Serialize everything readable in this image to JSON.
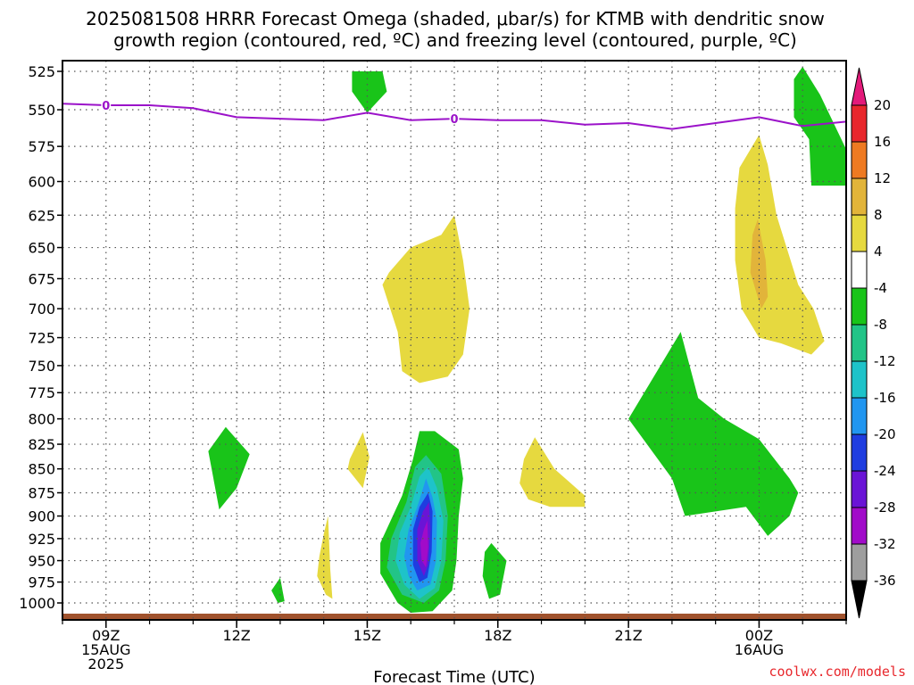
{
  "chart_data": {
    "type": "heatmap",
    "title_line1": "2025081508 HRRR Forecast Omega (shaded, μbar/s) for KTMB with dendritic snow",
    "title_line2": "growth region (contoured, red, ºC) and freezing level (contoured, purple, ºC)",
    "xlabel": "Forecast Time (UTC)",
    "credit": "coolwx.com/models",
    "y_scale": "pressure (hPa), inverted",
    "ylim": [
      1000,
      525
    ],
    "y_ticks": [
      525,
      550,
      575,
      600,
      625,
      650,
      675,
      700,
      725,
      750,
      775,
      800,
      825,
      850,
      875,
      900,
      925,
      950,
      975,
      1000
    ],
    "x_ticks": [
      {
        "t": 9,
        "line1": "09Z",
        "line2": "15AUG",
        "line3": "2025"
      },
      {
        "t": 12,
        "line1": "12Z"
      },
      {
        "t": 15,
        "line1": "15Z"
      },
      {
        "t": 18,
        "line1": "18Z"
      },
      {
        "t": 21,
        "line1": "21Z"
      },
      {
        "t": 24,
        "line1": "00Z",
        "line2": "16AUG"
      }
    ],
    "xlim_hours": [
      8,
      26
    ],
    "grid": true,
    "colorbar": {
      "labels": [
        "20",
        "16",
        "12",
        "8",
        "4",
        "-4",
        "-8",
        "-12",
        "-16",
        "-20",
        "-24",
        "-28",
        "-32",
        "-36"
      ],
      "colors": [
        "#e31a7a",
        "#e8272c",
        "#ee7a22",
        "#e2b43a",
        "#e6d93f",
        "#ffffff",
        "#19c419",
        "#22c487",
        "#1ec3c9",
        "#2196f0",
        "#1f3de0",
        "#6a14d6",
        "#a10bc9",
        "#9e9e9e",
        "#000000"
      ]
    },
    "freezing_level": {
      "label": "0",
      "color": "#9b12c9",
      "points": [
        {
          "t": 8.0,
          "p": 546
        },
        {
          "t": 9.0,
          "p": 547
        },
        {
          "t": 10.0,
          "p": 547
        },
        {
          "t": 11.0,
          "p": 549
        },
        {
          "t": 12.0,
          "p": 555
        },
        {
          "t": 13.0,
          "p": 556
        },
        {
          "t": 14.0,
          "p": 557
        },
        {
          "t": 15.0,
          "p": 552
        },
        {
          "t": 16.0,
          "p": 557
        },
        {
          "t": 17.0,
          "p": 556
        },
        {
          "t": 18.0,
          "p": 557
        },
        {
          "t": 19.0,
          "p": 557
        },
        {
          "t": 20.0,
          "p": 560
        },
        {
          "t": 21.0,
          "p": 559
        },
        {
          "t": 22.0,
          "p": 563
        },
        {
          "t": 23.0,
          "p": 559
        },
        {
          "t": 24.0,
          "p": 555
        },
        {
          "t": 25.0,
          "p": 561
        },
        {
          "t": 26.0,
          "p": 558
        }
      ]
    },
    "omega_regions": [
      {
        "level": "-8 to -4",
        "color": "#19c419",
        "points": [
          [
            14.65,
            525
          ],
          [
            15.35,
            525
          ],
          [
            15.45,
            538
          ],
          [
            15.0,
            552
          ],
          [
            14.65,
            538
          ]
        ]
      },
      {
        "level": "-8 to -4",
        "color": "#19c419",
        "points": [
          [
            24.8,
            530
          ],
          [
            25.0,
            522
          ],
          [
            25.4,
            540
          ],
          [
            26.0,
            577
          ],
          [
            26.0,
            603
          ],
          [
            25.2,
            603
          ],
          [
            25.15,
            570
          ],
          [
            24.8,
            555
          ]
        ]
      },
      {
        "level": "4 to 8",
        "color": "#e6d93f",
        "points": [
          [
            24.0,
            567
          ],
          [
            24.2,
            588
          ],
          [
            24.4,
            625
          ],
          [
            24.9,
            680
          ],
          [
            25.25,
            700
          ],
          [
            25.5,
            728
          ],
          [
            25.2,
            740
          ],
          [
            24.5,
            730
          ],
          [
            24.0,
            725
          ],
          [
            23.6,
            700
          ],
          [
            23.45,
            660
          ],
          [
            23.45,
            620
          ],
          [
            23.55,
            590
          ]
        ]
      },
      {
        "level": "8 to 12",
        "color": "#e2b43a",
        "points": [
          [
            23.97,
            628
          ],
          [
            24.15,
            660
          ],
          [
            24.2,
            690
          ],
          [
            24.05,
            700
          ],
          [
            23.8,
            670
          ],
          [
            23.85,
            640
          ]
        ]
      },
      {
        "level": "4 to 8",
        "color": "#e6d93f",
        "points": [
          [
            15.5,
            670
          ],
          [
            16.0,
            650
          ],
          [
            16.7,
            640
          ],
          [
            17.0,
            625
          ],
          [
            17.2,
            660
          ],
          [
            17.35,
            700
          ],
          [
            17.2,
            740
          ],
          [
            16.85,
            760
          ],
          [
            16.2,
            766
          ],
          [
            15.8,
            755
          ],
          [
            15.7,
            720
          ],
          [
            15.35,
            680
          ]
        ]
      },
      {
        "level": "-8 to -4",
        "color": "#19c419",
        "points": [
          [
            22.2,
            720
          ],
          [
            22.6,
            780
          ],
          [
            23.2,
            800
          ],
          [
            24.0,
            820
          ],
          [
            24.7,
            860
          ],
          [
            24.9,
            875
          ],
          [
            24.7,
            900
          ],
          [
            24.2,
            922
          ],
          [
            23.7,
            890
          ],
          [
            22.3,
            900
          ],
          [
            22.0,
            860
          ],
          [
            21.0,
            800
          ]
        ]
      },
      {
        "level": "-8 to -4",
        "color": "#19c419",
        "points": [
          [
            11.35,
            832
          ],
          [
            11.75,
            808
          ],
          [
            12.3,
            835
          ],
          [
            12.0,
            870
          ],
          [
            11.6,
            893
          ]
        ]
      },
      {
        "level": "4 to 8",
        "color": "#e6d93f",
        "points": [
          [
            14.6,
            840
          ],
          [
            14.9,
            813
          ],
          [
            15.05,
            838
          ],
          [
            14.9,
            870
          ],
          [
            14.55,
            850
          ]
        ]
      },
      {
        "level": "4 to 8",
        "color": "#e6d93f",
        "points": [
          [
            18.6,
            840
          ],
          [
            18.85,
            818
          ],
          [
            19.3,
            850
          ],
          [
            19.8,
            870
          ],
          [
            20.0,
            878
          ],
          [
            20.0,
            890
          ],
          [
            19.2,
            890
          ],
          [
            18.7,
            882
          ],
          [
            18.5,
            865
          ]
        ]
      },
      {
        "level": "4 to 8",
        "color": "#e6d93f",
        "points": [
          [
            13.9,
            945
          ],
          [
            14.0,
            920
          ],
          [
            14.1,
            900
          ],
          [
            14.15,
            960
          ],
          [
            14.2,
            995
          ],
          [
            14.05,
            990
          ],
          [
            13.85,
            968
          ]
        ]
      },
      {
        "level": "-8 to -4",
        "color": "#19c419",
        "points": [
          [
            12.8,
            985
          ],
          [
            13.0,
            970
          ],
          [
            13.1,
            998
          ],
          [
            12.95,
            1000
          ]
        ]
      },
      {
        "level": "-8 to -4",
        "color": "#19c419",
        "points": [
          [
            17.7,
            940
          ],
          [
            17.85,
            930
          ],
          [
            18.2,
            950
          ],
          [
            18.05,
            990
          ],
          [
            17.8,
            995
          ],
          [
            17.65,
            968
          ]
        ]
      },
      {
        "level": "-8 to -4",
        "color": "#19c419",
        "points": [
          [
            15.8,
            878
          ],
          [
            16.05,
            840
          ],
          [
            16.2,
            812
          ],
          [
            16.55,
            812
          ],
          [
            17.1,
            830
          ],
          [
            17.2,
            860
          ],
          [
            17.1,
            900
          ],
          [
            17.05,
            950
          ],
          [
            16.95,
            985
          ],
          [
            16.5,
            1010
          ],
          [
            16.0,
            1012
          ],
          [
            15.7,
            1000
          ],
          [
            15.3,
            965
          ],
          [
            15.3,
            930
          ]
        ]
      },
      {
        "level": "-12 to -8",
        "color": "#22c487",
        "points": [
          [
            15.9,
            885
          ],
          [
            16.1,
            848
          ],
          [
            16.35,
            836
          ],
          [
            16.7,
            855
          ],
          [
            16.85,
            900
          ],
          [
            16.8,
            950
          ],
          [
            16.65,
            985
          ],
          [
            16.3,
            1000
          ],
          [
            15.8,
            990
          ],
          [
            15.45,
            958
          ],
          [
            15.55,
            925
          ]
        ]
      },
      {
        "level": "-16 to -12",
        "color": "#1ec3c9",
        "points": [
          [
            16.0,
            890
          ],
          [
            16.2,
            858
          ],
          [
            16.4,
            848
          ],
          [
            16.6,
            870
          ],
          [
            16.75,
            905
          ],
          [
            16.7,
            950
          ],
          [
            16.55,
            982
          ],
          [
            16.2,
            995
          ],
          [
            15.85,
            978
          ],
          [
            15.65,
            950
          ],
          [
            15.75,
            918
          ]
        ]
      },
      {
        "level": "-20 to -16",
        "color": "#2196f0",
        "points": [
          [
            16.15,
            890
          ],
          [
            16.35,
            860
          ],
          [
            16.5,
            880
          ],
          [
            16.6,
            905
          ],
          [
            16.58,
            950
          ],
          [
            16.45,
            978
          ],
          [
            16.15,
            985
          ],
          [
            15.95,
            968
          ],
          [
            15.85,
            945
          ],
          [
            15.95,
            915
          ]
        ]
      },
      {
        "level": "-24 to -20",
        "color": "#1f3de0",
        "points": [
          [
            16.2,
            890
          ],
          [
            16.4,
            875
          ],
          [
            16.5,
            895
          ],
          [
            16.48,
            940
          ],
          [
            16.38,
            970
          ],
          [
            16.2,
            975
          ],
          [
            16.05,
            955
          ],
          [
            16.05,
            915
          ]
        ]
      },
      {
        "level": "-28 to -24",
        "color": "#6a14d6",
        "points": [
          [
            16.28,
            895
          ],
          [
            16.42,
            885
          ],
          [
            16.45,
            915
          ],
          [
            16.4,
            955
          ],
          [
            16.3,
            968
          ],
          [
            16.15,
            950
          ],
          [
            16.15,
            915
          ]
        ]
      },
      {
        "level": "-32 to -28",
        "color": "#a10bc9",
        "points": [
          [
            16.3,
            915
          ],
          [
            16.38,
            905
          ],
          [
            16.4,
            935
          ],
          [
            16.35,
            958
          ],
          [
            16.25,
            950
          ],
          [
            16.22,
            930
          ]
        ]
      }
    ],
    "terrain": {
      "color": "#a0522d"
    }
  }
}
